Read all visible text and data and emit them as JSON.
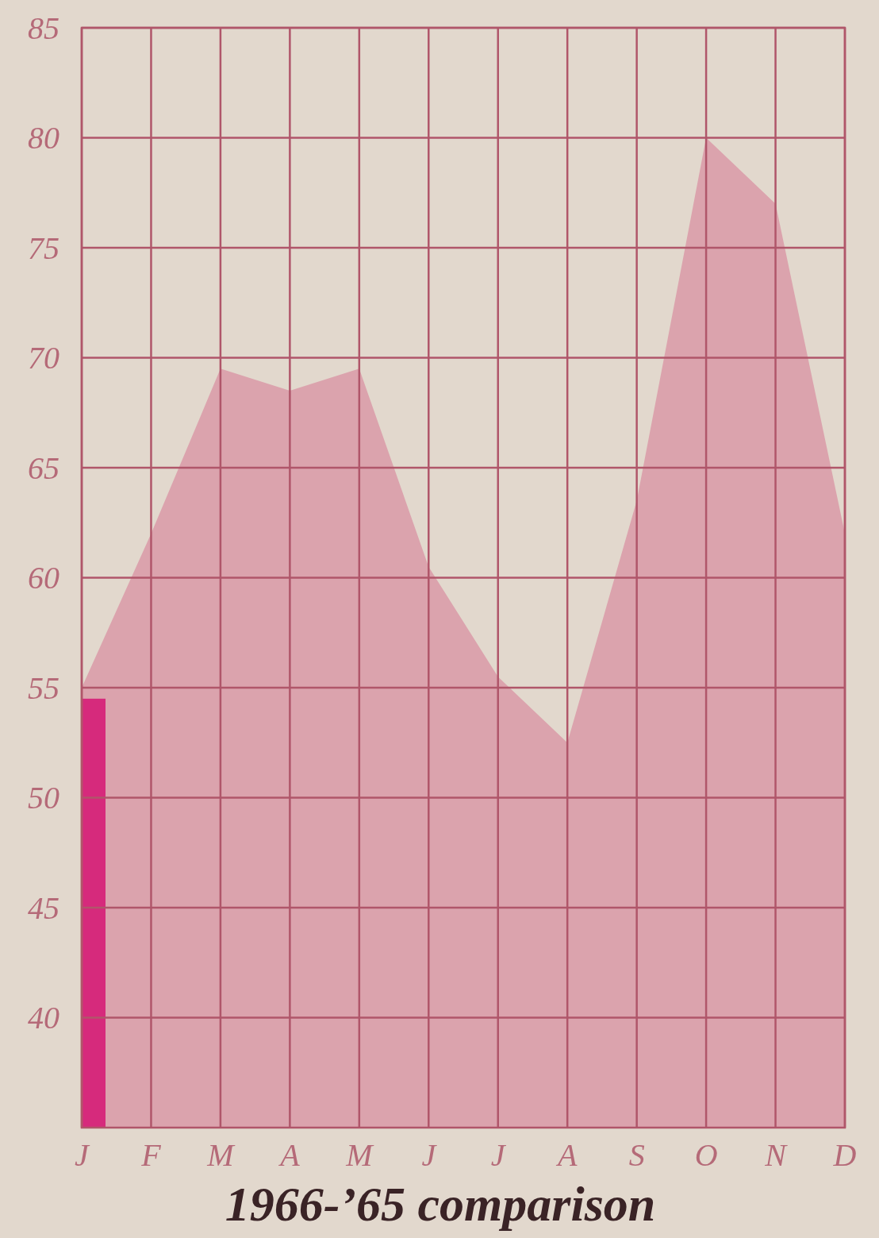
{
  "chart_data": {
    "type": "area",
    "title": "1966-’65 comparison",
    "categories": [
      "J",
      "F",
      "M",
      "A",
      "M",
      "J",
      "J",
      "A",
      "S",
      "O",
      "N",
      "D"
    ],
    "series": [
      {
        "color": "#dba3ad",
        "values": [
          55,
          62,
          69.5,
          68.5,
          69.5,
          60.5,
          55.5,
          52.5,
          63.5,
          80,
          77,
          62
        ]
      },
      {
        "type": "bar",
        "color": "#d62a7c",
        "values": [
          54.5,
          null,
          null,
          null,
          null,
          null,
          null,
          null,
          null,
          null,
          null,
          null
        ]
      }
    ],
    "ylim": [
      35,
      85
    ],
    "yticks": [
      40,
      45,
      50,
      55,
      60,
      65,
      70,
      75,
      80,
      85
    ],
    "grid": true
  }
}
